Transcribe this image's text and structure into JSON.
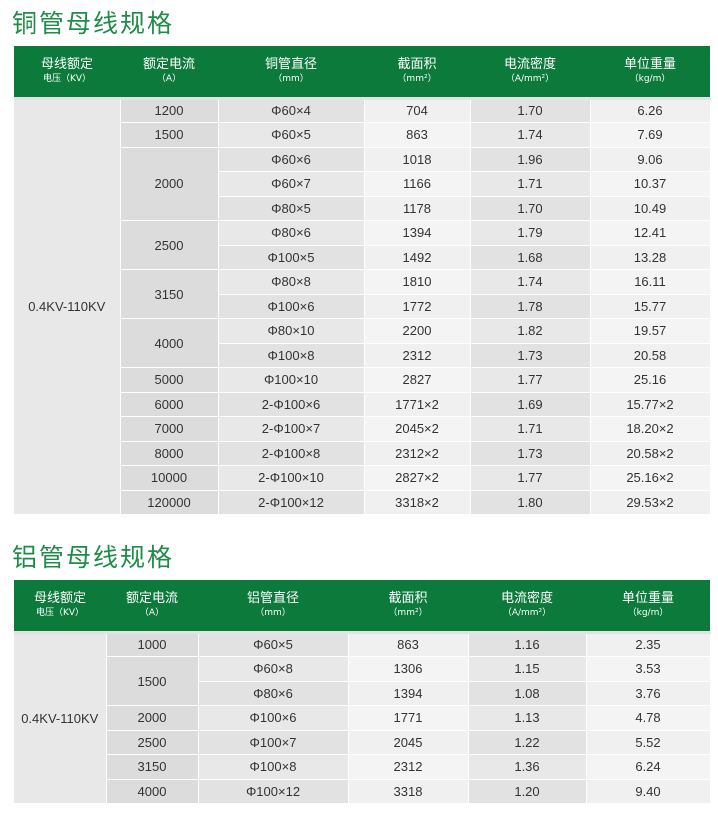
{
  "copper": {
    "title": "铜管母线规格",
    "headers": [
      {
        "label": "母线额定",
        "sub": "电压（KV）"
      },
      {
        "label": "额定电流",
        "sub": "（A）"
      },
      {
        "label": "铜管直径",
        "sub": "（mm）"
      },
      {
        "label": "截面积",
        "sub": "（mm²）"
      },
      {
        "label": "电流密度",
        "sub": "（A/mm²）"
      },
      {
        "label": "单位重量",
        "sub": "（kg/m）"
      }
    ],
    "voltage": "0.4KV-110KV",
    "rows": [
      {
        "current": "1200",
        "span": 1,
        "diameter": "Φ60×4",
        "area": "704",
        "density": "1.70",
        "weight": "6.26"
      },
      {
        "current": "1500",
        "span": 1,
        "diameter": "Φ60×5",
        "area": "863",
        "density": "1.74",
        "weight": "7.69"
      },
      {
        "current": "2000",
        "span": 3,
        "diameter": "Φ60×6",
        "area": "1018",
        "density": "1.96",
        "weight": "9.06"
      },
      {
        "current": null,
        "diameter": "Φ60×7",
        "area": "1166",
        "density": "1.71",
        "weight": "10.37"
      },
      {
        "current": null,
        "diameter": "Φ80×5",
        "area": "1178",
        "density": "1.70",
        "weight": "10.49"
      },
      {
        "current": "2500",
        "span": 2,
        "diameter": "Φ80×6",
        "area": "1394",
        "density": "1.79",
        "weight": "12.41"
      },
      {
        "current": null,
        "diameter": "Φ100×5",
        "area": "1492",
        "density": "1.68",
        "weight": "13.28"
      },
      {
        "current": "3150",
        "span": 2,
        "diameter": "Φ80×8",
        "area": "1810",
        "density": "1.74",
        "weight": "16.11"
      },
      {
        "current": null,
        "diameter": "Φ100×6",
        "area": "1772",
        "density": "1.78",
        "weight": "15.77"
      },
      {
        "current": "4000",
        "span": 2,
        "diameter": "Φ80×10",
        "area": "2200",
        "density": "1.82",
        "weight": "19.57"
      },
      {
        "current": null,
        "diameter": "Φ100×8",
        "area": "2312",
        "density": "1.73",
        "weight": "20.58"
      },
      {
        "current": "5000",
        "span": 1,
        "diameter": "Φ100×10",
        "area": "2827",
        "density": "1.77",
        "weight": "25.16"
      },
      {
        "current": "6000",
        "span": 1,
        "diameter": "2-Φ100×6",
        "area": "1771×2",
        "density": "1.69",
        "weight": "15.77×2"
      },
      {
        "current": "7000",
        "span": 1,
        "diameter": "2-Φ100×7",
        "area": "2045×2",
        "density": "1.71",
        "weight": "18.20×2"
      },
      {
        "current": "8000",
        "span": 1,
        "diameter": "2-Φ100×8",
        "area": "2312×2",
        "density": "1.73",
        "weight": "20.58×2"
      },
      {
        "current": "10000",
        "span": 1,
        "diameter": "2-Φ100×10",
        "area": "2827×2",
        "density": "1.77",
        "weight": "25.16×2"
      },
      {
        "current": "120000",
        "span": 1,
        "diameter": "2-Φ100×12",
        "area": "3318×2",
        "density": "1.80",
        "weight": "29.53×2"
      }
    ]
  },
  "aluminum": {
    "title": "铝管母线规格",
    "headers": [
      {
        "label": "母线额定",
        "sub": "电压（KV）"
      },
      {
        "label": "额定电流",
        "sub": "（A）"
      },
      {
        "label": "铝管直径",
        "sub": "（mm）"
      },
      {
        "label": "截面积",
        "sub": "（mm²）"
      },
      {
        "label": "电流密度",
        "sub": "（A/mm²）"
      },
      {
        "label": "单位重量",
        "sub": "（kg/m）"
      }
    ],
    "voltage": "0.4KV-110KV",
    "rows": [
      {
        "current": "1000",
        "span": 1,
        "diameter": "Φ60×5",
        "area": "863",
        "density": "1.16",
        "weight": "2.35"
      },
      {
        "current": "1500",
        "span": 2,
        "diameter": "Φ60×8",
        "area": "1306",
        "density": "1.15",
        "weight": "3.53"
      },
      {
        "current": null,
        "diameter": "Φ80×6",
        "area": "1394",
        "density": "1.08",
        "weight": "3.76"
      },
      {
        "current": "2000",
        "span": 1,
        "diameter": "Φ100×6",
        "area": "1771",
        "density": "1.13",
        "weight": "4.78"
      },
      {
        "current": "2500",
        "span": 1,
        "diameter": "Φ100×7",
        "area": "2045",
        "density": "1.22",
        "weight": "5.52"
      },
      {
        "current": "3150",
        "span": 1,
        "diameter": "Φ100×8",
        "area": "2312",
        "density": "1.36",
        "weight": "6.24"
      },
      {
        "current": "4000",
        "span": 1,
        "diameter": "Φ100×12",
        "area": "3318",
        "density": "1.20",
        "weight": "9.40"
      }
    ]
  }
}
